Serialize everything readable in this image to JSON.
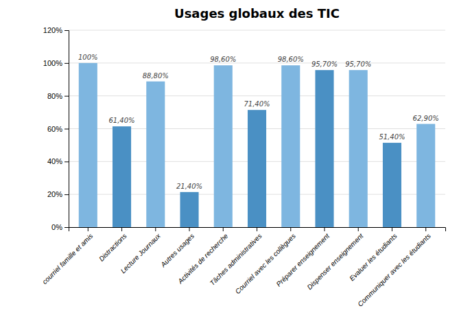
{
  "chart_data": {
    "type": "bar",
    "title": "Usages globaux des TIC",
    "categories": [
      "courriel famille et amis",
      "Distractions",
      "Lecture Journaux",
      "Autres usages",
      "Activités de recherche",
      "Tâches administratives",
      "Courriel avec les collègues",
      "Préparer enseignement",
      "Dispenser enseignement",
      "Evaluer les étudiants",
      "Communiquer avec les étudiants"
    ],
    "values": [
      100.0,
      61.4,
      88.8,
      21.4,
      98.6,
      71.4,
      98.6,
      95.7,
      95.7,
      51.4,
      62.9
    ],
    "value_labels": [
      "100%",
      "61,40%",
      "88,80%",
      "21,40%",
      "98,60%",
      "71,40%",
      "98,60%",
      "95,70%",
      "95,70%",
      "51,40%",
      "62,90%"
    ],
    "colors": [
      "#7EB6E0",
      "#4A90C4",
      "#7EB6E0",
      "#4A90C4",
      "#7EB6E0",
      "#4A90C4",
      "#7EB6E0",
      "#4A90C4",
      "#7EB6E0",
      "#4A90C4",
      "#7EB6E0"
    ],
    "ylim": [
      0,
      120
    ],
    "yticks": [
      {
        "value": 0,
        "label": "0%"
      },
      {
        "value": 20,
        "label": "20%"
      },
      {
        "value": 40,
        "label": "40%"
      },
      {
        "value": 60,
        "label": "60%"
      },
      {
        "value": 80,
        "label": "80%"
      },
      {
        "value": 100,
        "label": "100%"
      },
      {
        "value": 120,
        "label": "120%"
      }
    ],
    "grid": true,
    "data_labels": true
  }
}
